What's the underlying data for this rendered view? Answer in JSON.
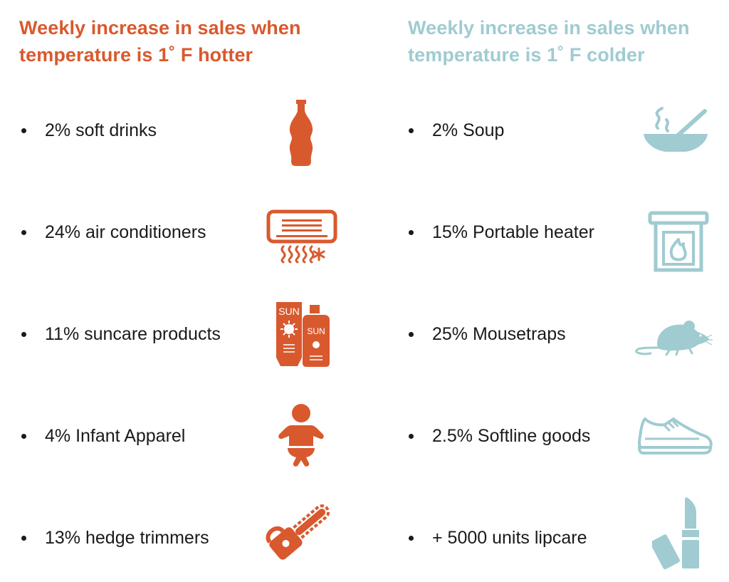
{
  "hot": {
    "heading_line1": "Weekly increase in sales when",
    "heading_line2": "temperature is 1˚ F hotter",
    "color": "#d9592e",
    "items": [
      {
        "label": "2% soft drinks",
        "icon": "soda-bottle-icon"
      },
      {
        "label": "24% air conditioners",
        "icon": "air-conditioner-icon"
      },
      {
        "label": "11% suncare products",
        "icon": "sunscreen-icon"
      },
      {
        "label": "4% Infant Apparel",
        "icon": "baby-icon"
      },
      {
        "label": "13% hedge trimmers",
        "icon": "chainsaw-icon"
      }
    ]
  },
  "cold": {
    "heading_line1": "Weekly increase in sales when",
    "heading_line2": "temperature is 1˚ F colder",
    "color": "#9fcbd1",
    "items": [
      {
        "label": "2% Soup",
        "icon": "soup-bowl-icon"
      },
      {
        "label": "15% Portable heater",
        "icon": "fireplace-heater-icon"
      },
      {
        "label": "25% Mousetraps",
        "icon": "mouse-icon"
      },
      {
        "label": "2.5% Softline goods",
        "icon": "sneaker-icon"
      },
      {
        "label": "+ 5000 units lipcare",
        "icon": "lipstick-icon"
      }
    ]
  },
  "icon_text": {
    "sun_label": "SUN"
  }
}
